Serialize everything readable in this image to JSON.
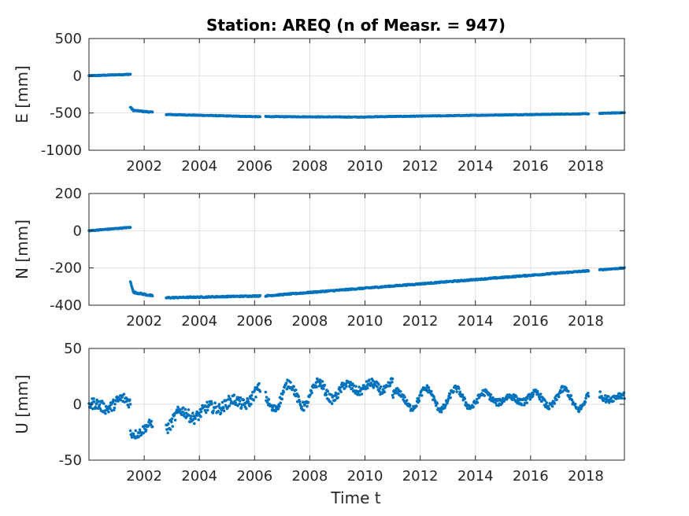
{
  "chart_data": {
    "type": "scatter",
    "title": "Station: AREQ (n of Measr. = 947)",
    "xlabel": "Time t",
    "x_ticks": [
      "2002",
      "2004",
      "2006",
      "2008",
      "2010",
      "2012",
      "2014",
      "2016",
      "2018"
    ],
    "xlim": [
      2000.0,
      2019.4
    ],
    "grid": true,
    "marker_color": "#0072bd",
    "panels": [
      {
        "name": "E",
        "ylabel": "E [mm]",
        "ylim": [
          -1000,
          500
        ],
        "y_ticks": [
          "500",
          "0",
          "-500",
          "-1000"
        ],
        "segments": [
          {
            "x": [
              2000.0,
              2001.5
            ],
            "y": [
              0,
              20
            ],
            "noise": 5
          },
          {
            "x": [
              2001.5,
              2001.6
            ],
            "y": [
              -420,
              -460
            ],
            "noise": 8
          },
          {
            "x": [
              2001.6,
              2002.3
            ],
            "y": [
              -465,
              -490
            ],
            "noise": 6
          },
          {
            "x": [
              2002.8,
              2006.2
            ],
            "y": [
              -520,
              -550
            ],
            "noise": 4
          },
          {
            "x": [
              2006.4,
              2010.0
            ],
            "y": [
              -548,
              -555
            ],
            "noise": 4
          },
          {
            "x": [
              2010.0,
              2018.1
            ],
            "y": [
              -552,
              -510
            ],
            "noise": 4
          },
          {
            "x": [
              2018.5,
              2019.4
            ],
            "y": [
              -505,
              -495
            ],
            "noise": 4
          }
        ]
      },
      {
        "name": "N",
        "ylabel": "N [mm]",
        "ylim": [
          -400,
          200
        ],
        "y_ticks": [
          "200",
          "0",
          "-200",
          "-400"
        ],
        "segments": [
          {
            "x": [
              2000.0,
              2001.5
            ],
            "y": [
              0,
              18
            ],
            "noise": 2
          },
          {
            "x": [
              2001.5,
              2001.6
            ],
            "y": [
              -275,
              -320
            ],
            "noise": 4
          },
          {
            "x": [
              2001.6,
              2002.3
            ],
            "y": [
              -330,
              -350
            ],
            "noise": 4
          },
          {
            "x": [
              2002.8,
              2006.2
            ],
            "y": [
              -360,
              -350
            ],
            "noise": 3
          },
          {
            "x": [
              2006.4,
              2018.1
            ],
            "y": [
              -350,
              -215
            ],
            "noise": 3
          },
          {
            "x": [
              2018.5,
              2019.4
            ],
            "y": [
              -210,
              -200
            ],
            "noise": 2
          }
        ]
      },
      {
        "name": "U",
        "ylabel": "U [mm]",
        "ylim": [
          -50,
          50
        ],
        "y_ticks": [
          "50",
          "0",
          "-50"
        ],
        "segments": [
          {
            "x": [
              2000.0,
              2001.5
            ],
            "y": [
              -2,
              2
            ],
            "noise": 5,
            "wave": 3
          },
          {
            "x": [
              2001.5,
              2002.3
            ],
            "y": [
              -25,
              -20
            ],
            "noise": 4,
            "wave": 2
          },
          {
            "x": [
              2002.8,
              2006.2
            ],
            "y": [
              -15,
              8
            ],
            "noise": 5,
            "wave": 5
          },
          {
            "x": [
              2006.4,
              2011.0
            ],
            "y": [
              5,
              18
            ],
            "noise": 4,
            "wave": 7
          },
          {
            "x": [
              2011.0,
              2018.1
            ],
            "y": [
              5,
              5
            ],
            "noise": 3,
            "wave": 6
          },
          {
            "x": [
              2018.5,
              2019.4
            ],
            "y": [
              8,
              6
            ],
            "noise": 3,
            "wave": 2
          }
        ]
      }
    ]
  }
}
